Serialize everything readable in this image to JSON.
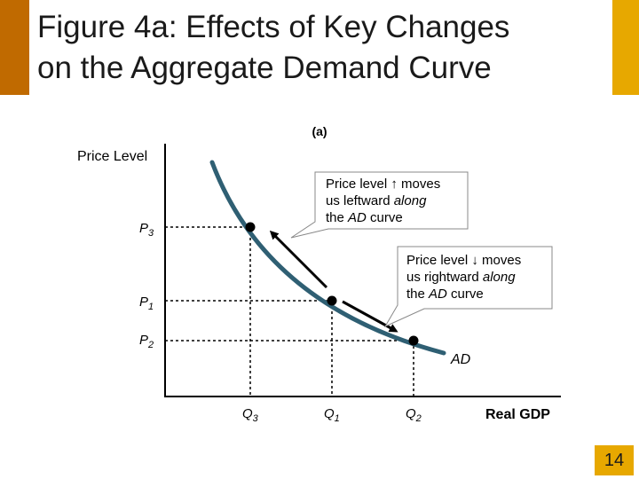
{
  "title_line1": "Figure 4a:  Effects of Key Changes",
  "title_line2": "on the Aggregate Demand Curve",
  "panel_label": "(a)",
  "y_axis_label": "Price Level",
  "x_axis_label": "Real GDP",
  "curve_label": "AD",
  "price_labels": [
    {
      "main": "P",
      "sub": "3"
    },
    {
      "main": "P",
      "sub": "1"
    },
    {
      "main": "P",
      "sub": "2"
    }
  ],
  "quantity_labels": [
    {
      "main": "Q",
      "sub": "3"
    },
    {
      "main": "Q",
      "sub": "1"
    },
    {
      "main": "Q",
      "sub": "2"
    }
  ],
  "callout_up": {
    "line1": "Price level ↑ moves",
    "line2_plain": "us leftward ",
    "line2_italic": "along",
    "line3_plain": "the ",
    "line3_italic": "AD",
    "line3_end": " curve"
  },
  "callout_down": {
    "line1": "Price level ↓ moves",
    "line2_plain": "us rightward ",
    "line2_italic": "along",
    "line3_plain": "the ",
    "line3_italic": "AD",
    "line3_end": " curve"
  },
  "page_number": "14",
  "colors": {
    "accent": "#e7a800",
    "accent_dark": "#c06a00",
    "curve": "#2f5f73",
    "callout_fill": "#ffffff"
  }
}
